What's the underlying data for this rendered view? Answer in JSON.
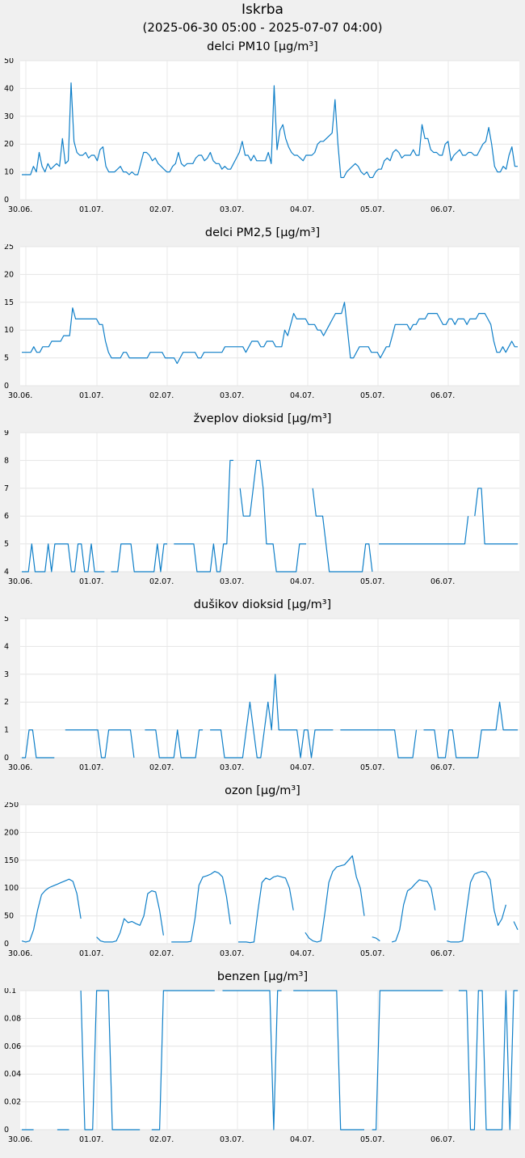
{
  "title": "Iskrba",
  "subtitle": "(2025-06-30 05:00 - 2025-07-07 04:00)",
  "line_color": "#0f7fc8",
  "chart_data": [
    {
      "type": "line",
      "title": "delci PM10 [µg/m³]",
      "ylim": [
        0,
        50
      ],
      "yticks": [
        "0",
        "10",
        "20",
        "30",
        "40",
        "50"
      ],
      "xticks": [
        "30.06.",
        "01.07.",
        "02.07.",
        "03.07.",
        "04.07.",
        "05.07.",
        "06.07."
      ],
      "grid": true,
      "series": [
        {
          "values": [
            9,
            9,
            9,
            9,
            12,
            10,
            17,
            12,
            10,
            13,
            11,
            12,
            13,
            12,
            22,
            13,
            14,
            42,
            21,
            17,
            16,
            16,
            17,
            15,
            16,
            16,
            14,
            18,
            19,
            12,
            10,
            10,
            10,
            11,
            12,
            10,
            10,
            9,
            10,
            9,
            9,
            13,
            17,
            17,
            16,
            14,
            15,
            13,
            12,
            11,
            10,
            10,
            12,
            13,
            17,
            13,
            12,
            13,
            13,
            13,
            15,
            16,
            16,
            14,
            15,
            17,
            14,
            13,
            13,
            11,
            12,
            11,
            11,
            13,
            15,
            17,
            21,
            16,
            16,
            14,
            16,
            14,
            14,
            14,
            14,
            17,
            13,
            41,
            18,
            25,
            27,
            22,
            19,
            17,
            16,
            16,
            15,
            14,
            16,
            16,
            16,
            17,
            20,
            21,
            21,
            22,
            23,
            24,
            36,
            20,
            8,
            8,
            10,
            11,
            12,
            13,
            12,
            10,
            9,
            10,
            8,
            8,
            10,
            11,
            11,
            14,
            15,
            14,
            17,
            18,
            17,
            15,
            16,
            16,
            16,
            18,
            16,
            16,
            27,
            22,
            22,
            18,
            17,
            17,
            16,
            16,
            20,
            21,
            14,
            16,
            17,
            18,
            16,
            16,
            17,
            17,
            16,
            16,
            18,
            20,
            21,
            26,
            20,
            12,
            10,
            10,
            12,
            11,
            16,
            19,
            12,
            12
          ]
        }
      ]
    },
    {
      "type": "line",
      "title": "delci PM2,5 [µg/m³]",
      "ylim": [
        0,
        25
      ],
      "yticks": [
        "0",
        "5",
        "10",
        "15",
        "20",
        "25"
      ],
      "xticks": [
        "30.06.",
        "01.07.",
        "02.07.",
        "03.07.",
        "04.07.",
        "05.07.",
        "06.07."
      ],
      "grid": true,
      "series": [
        {
          "values": [
            6,
            6,
            6,
            6,
            7,
            6,
            6,
            7,
            7,
            7,
            8,
            8,
            8,
            8,
            9,
            9,
            9,
            14,
            12,
            12,
            12,
            12,
            12,
            12,
            12,
            12,
            11,
            11,
            8,
            6,
            5,
            5,
            5,
            5,
            6,
            6,
            5,
            5,
            5,
            5,
            5,
            5,
            5,
            6,
            6,
            6,
            6,
            6,
            5,
            5,
            5,
            5,
            4,
            5,
            6,
            6,
            6,
            6,
            6,
            5,
            5,
            6,
            6,
            6,
            6,
            6,
            6,
            6,
            7,
            7,
            7,
            7,
            7,
            7,
            7,
            6,
            7,
            8,
            8,
            8,
            7,
            7,
            8,
            8,
            8,
            7,
            7,
            7,
            10,
            9,
            11,
            13,
            12,
            12,
            12,
            12,
            11,
            11,
            11,
            10,
            10,
            9,
            10,
            11,
            12,
            13,
            13,
            13,
            15,
            10,
            5,
            5,
            6,
            7,
            7,
            7,
            7,
            6,
            6,
            6,
            5,
            6,
            7,
            7,
            9,
            11,
            11,
            11,
            11,
            11,
            10,
            11,
            11,
            12,
            12,
            12,
            13,
            13,
            13,
            13,
            12,
            11,
            11,
            12,
            12,
            11,
            12,
            12,
            12,
            11,
            12,
            12,
            12,
            13,
            13,
            13,
            12,
            11,
            8,
            6,
            6,
            7,
            6,
            7,
            8,
            7,
            7
          ]
        }
      ]
    },
    {
      "type": "line",
      "title": "žveplov dioksid [µg/m³]",
      "ylim": [
        4,
        9
      ],
      "yticks": [
        "4",
        "5",
        "6",
        "7",
        "8",
        "9"
      ],
      "xticks": [
        "30.06.",
        "01.07.",
        "02.07.",
        "03.07.",
        "04.07.",
        "05.07.",
        "06.07."
      ],
      "grid": true,
      "series": [
        {
          "values": [
            4,
            4,
            4,
            5,
            4,
            4,
            4,
            4,
            5,
            4,
            5,
            5,
            5,
            5,
            5,
            4,
            4,
            5,
            5,
            4,
            4,
            5,
            4,
            4,
            4,
            4,
            null,
            4,
            4,
            4,
            5,
            5,
            5,
            5,
            4,
            4,
            4,
            4,
            4,
            4,
            4,
            5,
            4,
            5,
            5,
            null,
            5,
            5,
            5,
            5,
            5,
            5,
            5,
            4,
            4,
            4,
            4,
            4,
            5,
            4,
            4,
            5,
            5,
            8,
            8,
            null,
            7,
            6,
            6,
            6,
            7,
            8,
            8,
            7,
            5,
            5,
            5,
            4,
            4,
            4,
            4,
            4,
            4,
            4,
            5,
            5,
            5,
            null,
            7,
            6,
            6,
            6,
            5,
            4,
            4,
            4,
            4,
            4,
            4,
            4,
            4,
            4,
            4,
            4,
            5,
            5,
            4,
            null,
            5,
            5,
            5,
            5,
            5,
            5,
            5,
            5,
            5,
            5,
            5,
            5,
            5,
            5,
            5,
            5,
            5,
            5,
            5,
            5,
            5,
            5,
            5,
            5,
            5,
            5,
            5,
            6,
            null,
            6,
            7,
            7,
            5,
            5,
            5,
            5,
            5,
            5,
            5,
            5,
            5,
            5,
            5
          ]
        }
      ]
    },
    {
      "type": "line",
      "title": "dušikov dioksid [µg/m³]",
      "ylim": [
        0,
        5
      ],
      "yticks": [
        "0",
        "1",
        "2",
        "3",
        "4",
        "5"
      ],
      "xticks": [
        "30.06.",
        "01.07.",
        "02.07.",
        "03.07.",
        "04.07.",
        "05.07.",
        "06.07."
      ],
      "grid": true,
      "series": [
        {
          "values": [
            0,
            0,
            1,
            1,
            0,
            0,
            0,
            0,
            0,
            0,
            null,
            null,
            1,
            1,
            1,
            1,
            1,
            1,
            1,
            1,
            1,
            1,
            0,
            0,
            1,
            1,
            1,
            1,
            1,
            1,
            1,
            0,
            null,
            null,
            1,
            1,
            1,
            1,
            0,
            0,
            0,
            0,
            0,
            1,
            0,
            0,
            0,
            0,
            0,
            1,
            1,
            null,
            1,
            1,
            1,
            1,
            0,
            0,
            0,
            0,
            0,
            0,
            1,
            2,
            1,
            0,
            0,
            1,
            2,
            1,
            3,
            1,
            1,
            1,
            1,
            1,
            1,
            0,
            1,
            1,
            0,
            1,
            1,
            1,
            1,
            1,
            1,
            null,
            1,
            1,
            1,
            1,
            1,
            1,
            1,
            1,
            1,
            1,
            1,
            1,
            1,
            1,
            1,
            1,
            0,
            0,
            0,
            0,
            0,
            1,
            null,
            1,
            1,
            1,
            1,
            0,
            0,
            0,
            1,
            1,
            0,
            0,
            0,
            0,
            0,
            0,
            0,
            1,
            1,
            1,
            1,
            1,
            2,
            1,
            1,
            1,
            1,
            1
          ]
        }
      ]
    },
    {
      "type": "line",
      "title": "ozon [µg/m³]",
      "ylim": [
        0,
        250
      ],
      "yticks": [
        "0",
        "50",
        "100",
        "150",
        "200",
        "250"
      ],
      "xticks": [
        "30.06.",
        "01.07.",
        "02.07.",
        "03.07.",
        "04.07.",
        "05.07.",
        "06.07."
      ],
      "grid": true,
      "series": [
        {
          "values": [
            5,
            3,
            5,
            25,
            60,
            88,
            96,
            101,
            104,
            107,
            110,
            113,
            116,
            112,
            90,
            45,
            null,
            null,
            null,
            12,
            5,
            3,
            3,
            3,
            5,
            20,
            45,
            38,
            40,
            36,
            33,
            50,
            90,
            95,
            93,
            60,
            15,
            null,
            3,
            3,
            3,
            3,
            3,
            4,
            45,
            105,
            120,
            122,
            125,
            130,
            127,
            120,
            85,
            35,
            null,
            3,
            3,
            3,
            2,
            3,
            60,
            110,
            118,
            115,
            120,
            122,
            120,
            118,
            100,
            60,
            null,
            null,
            20,
            10,
            5,
            3,
            5,
            55,
            110,
            130,
            138,
            140,
            142,
            150,
            158,
            120,
            100,
            50,
            null,
            12,
            10,
            5,
            null,
            null,
            3,
            5,
            25,
            70,
            95,
            100,
            108,
            115,
            113,
            112,
            100,
            60,
            null,
            null,
            5,
            3,
            3,
            3,
            5,
            60,
            110,
            125,
            128,
            130,
            128,
            115,
            60,
            33,
            45,
            70,
            null,
            40,
            25
          ]
        }
      ]
    },
    {
      "type": "line",
      "title": "benzen [µg/m³]",
      "ylim": [
        0,
        0.1
      ],
      "yticks": [
        "0",
        "0.02",
        "0.04",
        "0.06",
        "0.08",
        "0.1"
      ],
      "xticks": [
        "30.06.",
        "01.07.",
        "02.07.",
        "03.07.",
        "04.07.",
        "05.07.",
        "06.07."
      ],
      "grid": true,
      "series": [
        {
          "values": [
            0,
            0,
            0,
            0,
            null,
            null,
            null,
            null,
            null,
            0,
            0,
            0,
            0,
            null,
            null,
            0.1,
            0,
            0,
            0,
            0.1,
            0.1,
            0.1,
            0.1,
            0,
            0,
            0,
            0,
            0,
            0,
            0,
            0,
            null,
            null,
            0,
            0,
            0,
            0.1,
            0.1,
            0.1,
            0.1,
            0.1,
            0.1,
            0.1,
            0.1,
            0.1,
            0.1,
            0.1,
            0.1,
            0.1,
            0.1,
            null,
            0.1,
            0.1,
            0.1,
            0.1,
            0.1,
            0.1,
            0.1,
            0.1,
            0.1,
            0.1,
            0.1,
            0.1,
            0.1,
            0,
            0.1,
            0.1,
            null,
            null,
            0.1,
            0.1,
            0.1,
            0.1,
            0.1,
            0.1,
            0.1,
            0.1,
            0.1,
            0.1,
            0.1,
            0.1,
            0,
            0,
            0,
            0,
            0,
            0,
            0,
            null,
            0,
            0,
            0.1,
            0.1,
            0.1,
            0.1,
            0.1,
            0.1,
            0.1,
            0.1,
            0.1,
            0.1,
            0.1,
            0.1,
            0.1,
            0.1,
            0.1,
            0.1,
            0.1,
            null,
            null,
            null,
            0.1,
            0.1,
            0.1,
            0,
            0,
            0.1,
            0.1,
            0,
            0,
            0,
            0,
            0,
            0.1,
            0,
            0.1,
            0.1
          ]
        }
      ]
    }
  ]
}
